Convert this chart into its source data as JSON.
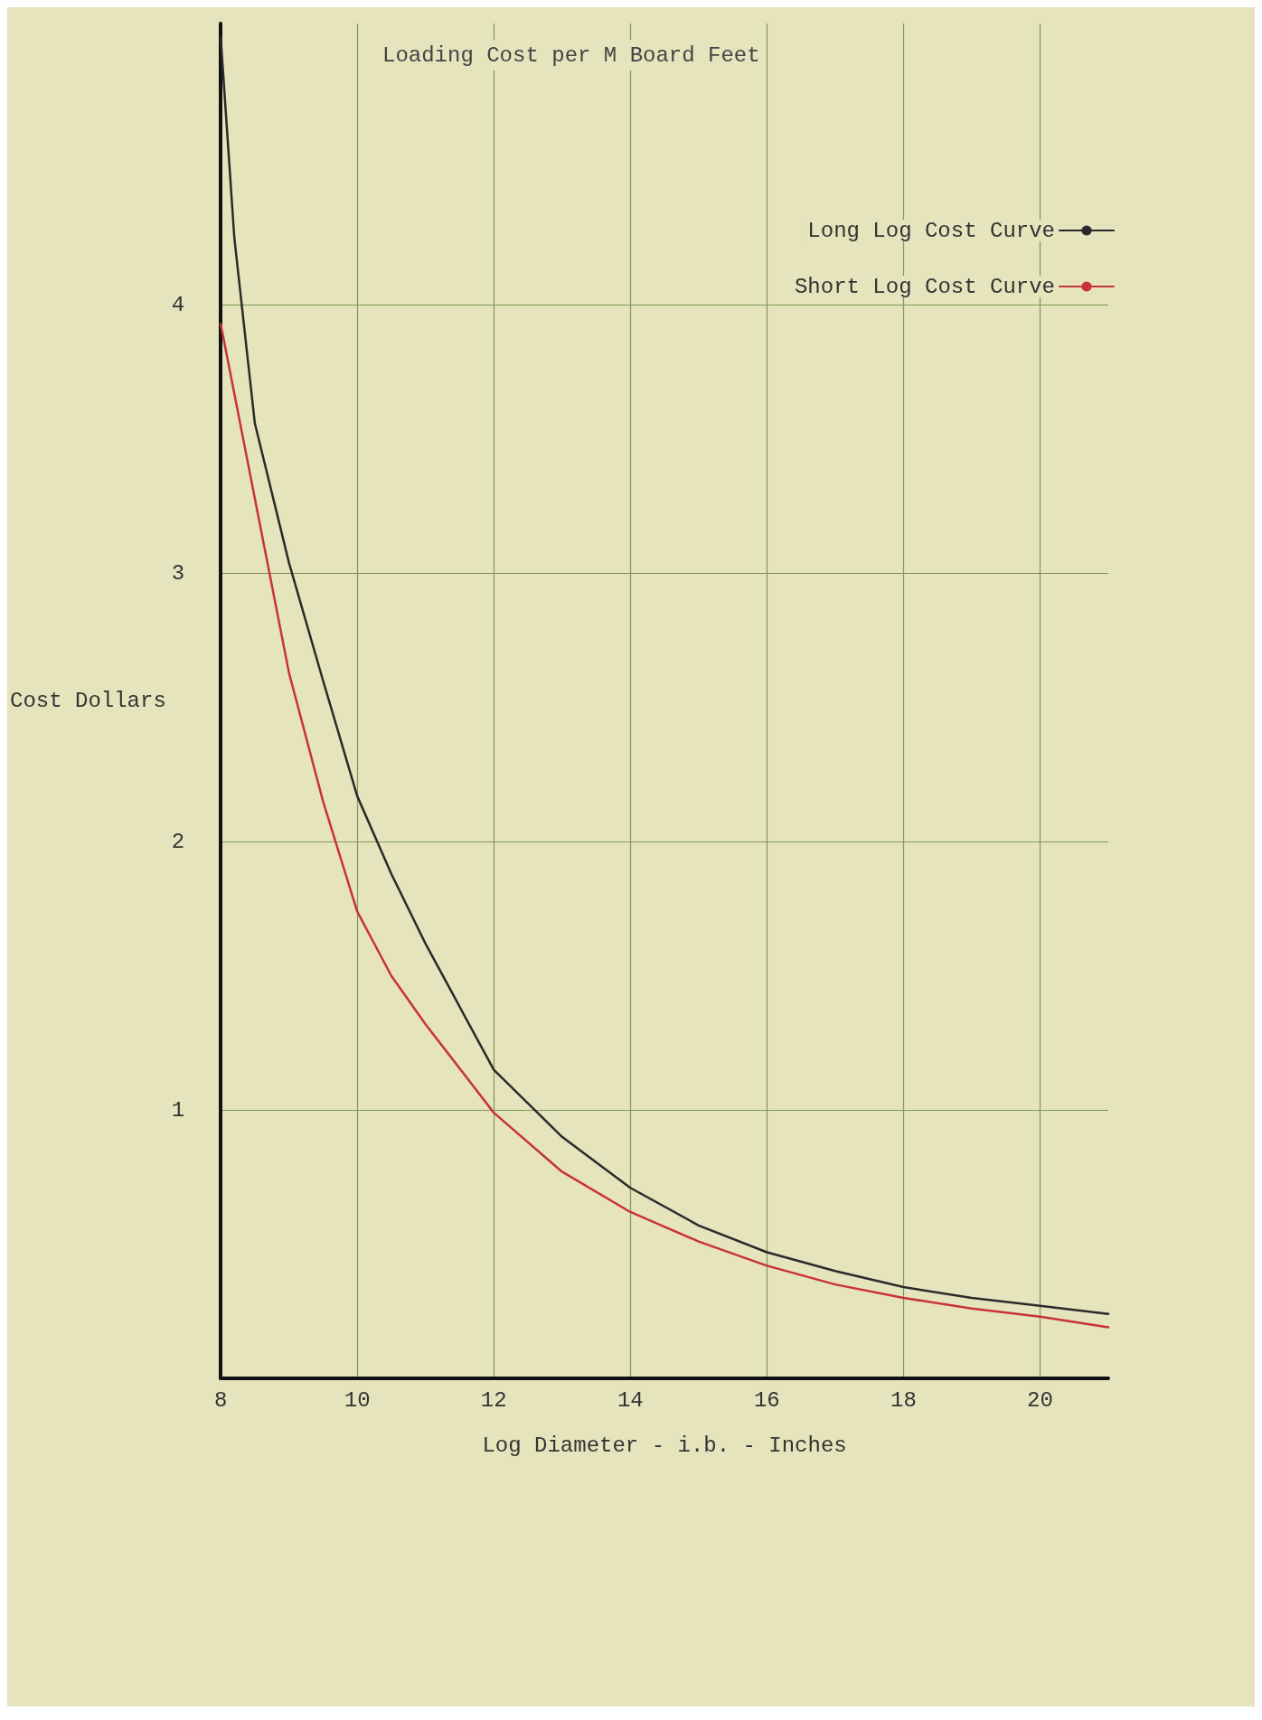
{
  "chart_data": {
    "type": "line",
    "title": "Loading Cost per M Board Feet",
    "xlabel": "Log Diameter - i.b. - Inches",
    "ylabel": "Cost Dollars",
    "xlim": [
      8,
      21
    ],
    "xticks": [
      8,
      10,
      12,
      14,
      16,
      18,
      20
    ],
    "ylim": [
      0,
      5.05
    ],
    "yticks": [
      1,
      2,
      3,
      4
    ],
    "grid": true,
    "legend": "top right",
    "marker": "none",
    "line_style": "solid",
    "series": [
      {
        "name": "Long Log Cost Curve",
        "color": "#2a2a2a",
        "x": [
          8,
          8.2,
          8.5,
          9,
          9.5,
          10,
          10.5,
          11,
          12,
          13,
          14,
          15,
          16,
          17,
          18,
          19,
          20,
          21
        ],
        "values": [
          5.0,
          4.25,
          3.56,
          3.04,
          2.6,
          2.17,
          1.88,
          1.62,
          1.15,
          0.9,
          0.71,
          0.57,
          0.47,
          0.4,
          0.34,
          0.3,
          0.27,
          0.24
        ]
      },
      {
        "name": "Short Log Cost Curve",
        "color": "#c8323a",
        "x": [
          8,
          8.5,
          9,
          9.5,
          10,
          10.5,
          11,
          12,
          13,
          14,
          15,
          16,
          17,
          18,
          19,
          20,
          21
        ],
        "values": [
          3.93,
          3.28,
          2.63,
          2.15,
          1.74,
          1.5,
          1.32,
          0.99,
          0.77,
          0.62,
          0.51,
          0.42,
          0.35,
          0.3,
          0.26,
          0.23,
          0.19
        ]
      }
    ]
  }
}
